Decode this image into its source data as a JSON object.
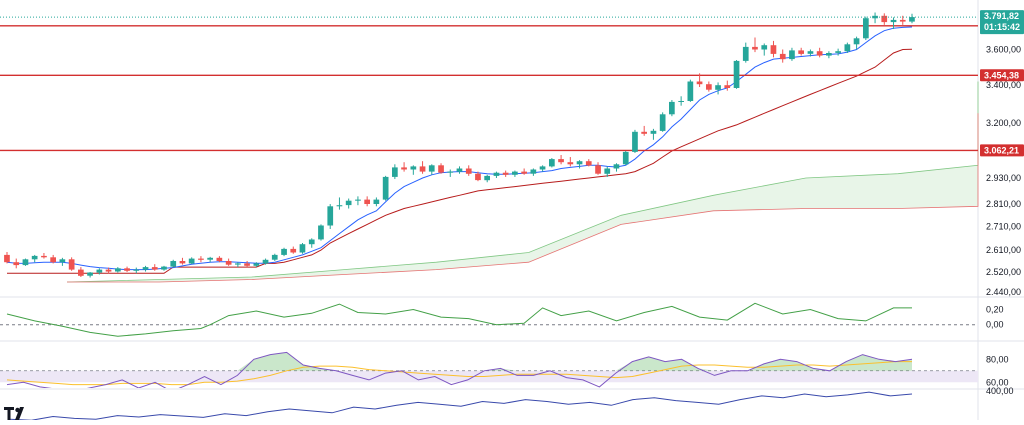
{
  "chart_data": [
    {
      "type": "candlestick",
      "title": "",
      "y_scale": "log",
      "ylim": [
        2425,
        3860
      ],
      "y_ticks": [
        "3.600,00",
        "3.400,00",
        "3.200,00",
        "2.930,00",
        "2.810,00",
        "2.710,00",
        "2.610,00",
        "2.520,00",
        "2.440,00"
      ],
      "y_tick_values": [
        3600,
        3400,
        3200,
        2930,
        2810,
        2710,
        2610,
        2520,
        2440
      ],
      "ohlc": [
        [
          2590,
          2602,
          2555,
          2560
        ],
        [
          2560,
          2575,
          2535,
          2548
        ],
        [
          2548,
          2575,
          2545,
          2572
        ],
        [
          2572,
          2590,
          2560,
          2586
        ],
        [
          2586,
          2598,
          2575,
          2580
        ],
        [
          2580,
          2590,
          2555,
          2560
        ],
        [
          2560,
          2578,
          2545,
          2572
        ],
        [
          2572,
          2580,
          2525,
          2530
        ],
        [
          2530,
          2540,
          2500,
          2505
        ],
        [
          2505,
          2520,
          2498,
          2518
        ],
        [
          2518,
          2535,
          2510,
          2530
        ],
        [
          2530,
          2538,
          2515,
          2522
        ],
        [
          2522,
          2540,
          2518,
          2535
        ],
        [
          2535,
          2542,
          2520,
          2525
        ],
        [
          2525,
          2538,
          2515,
          2530
        ],
        [
          2530,
          2545,
          2522,
          2540
        ],
        [
          2540,
          2552,
          2525,
          2530
        ],
        [
          2530,
          2545,
          2525,
          2542
        ],
        [
          2542,
          2570,
          2538,
          2565
        ],
        [
          2565,
          2578,
          2550,
          2555
        ],
        [
          2555,
          2580,
          2552,
          2575
        ],
        [
          2575,
          2585,
          2560,
          2570
        ],
        [
          2570,
          2582,
          2560,
          2578
        ],
        [
          2578,
          2585,
          2560,
          2565
        ],
        [
          2565,
          2575,
          2545,
          2550
        ],
        [
          2550,
          2560,
          2540,
          2555
        ],
        [
          2555,
          2565,
          2540,
          2545
        ],
        [
          2545,
          2560,
          2540,
          2555
        ],
        [
          2555,
          2575,
          2550,
          2570
        ],
        [
          2570,
          2595,
          2565,
          2590
        ],
        [
          2590,
          2620,
          2585,
          2615
        ],
        [
          2615,
          2625,
          2595,
          2600
        ],
        [
          2600,
          2640,
          2595,
          2635
        ],
        [
          2635,
          2660,
          2620,
          2655
        ],
        [
          2655,
          2720,
          2650,
          2715
        ],
        [
          2715,
          2810,
          2700,
          2800
        ],
        [
          2800,
          2840,
          2785,
          2805
        ],
        [
          2805,
          2835,
          2790,
          2825
        ],
        [
          2825,
          2845,
          2805,
          2830
        ],
        [
          2830,
          2845,
          2800,
          2810
        ],
        [
          2810,
          2840,
          2800,
          2830
        ],
        [
          2830,
          2940,
          2825,
          2935
        ],
        [
          2935,
          2995,
          2925,
          2980
        ],
        [
          2980,
          3005,
          2960,
          2970
        ],
        [
          2970,
          2990,
          2945,
          2985
        ],
        [
          2985,
          3010,
          2950,
          2960
        ],
        [
          2960,
          2995,
          2945,
          2990
        ],
        [
          2990,
          3000,
          2950,
          2955
        ],
        [
          2955,
          2970,
          2935,
          2960
        ],
        [
          2960,
          2985,
          2950,
          2975
        ],
        [
          2975,
          2990,
          2940,
          2950
        ],
        [
          2950,
          2960,
          2915,
          2920
        ],
        [
          2920,
          2945,
          2910,
          2940
        ],
        [
          2940,
          2960,
          2930,
          2955
        ],
        [
          2955,
          2965,
          2935,
          2945
        ],
        [
          2945,
          2965,
          2935,
          2960
        ],
        [
          2960,
          2975,
          2945,
          2950
        ],
        [
          2950,
          2975,
          2940,
          2970
        ],
        [
          2970,
          2990,
          2960,
          2985
        ],
        [
          2985,
          3025,
          2980,
          3020
        ],
        [
          3020,
          3040,
          2995,
          3005
        ],
        [
          3005,
          3030,
          2985,
          2995
        ],
        [
          2995,
          3015,
          2975,
          3010
        ],
        [
          3010,
          3020,
          2985,
          2990
        ],
        [
          2990,
          3005,
          2945,
          2950
        ],
        [
          2950,
          2985,
          2935,
          2975
        ],
        [
          2975,
          3000,
          2960,
          2995
        ],
        [
          2995,
          3060,
          2990,
          3055
        ],
        [
          3055,
          3165,
          3050,
          3155
        ],
        [
          3155,
          3185,
          3135,
          3145
        ],
        [
          3145,
          3170,
          3115,
          3160
        ],
        [
          3160,
          3255,
          3155,
          3245
        ],
        [
          3245,
          3320,
          3235,
          3310
        ],
        [
          3310,
          3340,
          3290,
          3315
        ],
        [
          3315,
          3430,
          3310,
          3420
        ],
        [
          3420,
          3465,
          3390,
          3405
        ],
        [
          3405,
          3420,
          3365,
          3375
        ],
        [
          3375,
          3415,
          3350,
          3400
        ],
        [
          3400,
          3425,
          3370,
          3385
        ],
        [
          3385,
          3540,
          3380,
          3535
        ],
        [
          3535,
          3640,
          3525,
          3615
        ],
        [
          3615,
          3670,
          3585,
          3600
        ],
        [
          3600,
          3635,
          3565,
          3625
        ],
        [
          3625,
          3650,
          3555,
          3575
        ],
        [
          3575,
          3600,
          3525,
          3545
        ],
        [
          3545,
          3610,
          3535,
          3595
        ],
        [
          3595,
          3610,
          3565,
          3575
        ],
        [
          3575,
          3600,
          3560,
          3590
        ],
        [
          3590,
          3610,
          3555,
          3565
        ],
        [
          3565,
          3590,
          3550,
          3580
        ],
        [
          3580,
          3605,
          3565,
          3590
        ],
        [
          3590,
          3640,
          3580,
          3630
        ],
        [
          3630,
          3675,
          3600,
          3665
        ],
        [
          3665,
          3795,
          3655,
          3785
        ],
        [
          3785,
          3820,
          3755,
          3800
        ],
        [
          3800,
          3815,
          3745,
          3762
        ],
        [
          3762,
          3790,
          3720,
          3775
        ],
        [
          3775,
          3800,
          3745,
          3765
        ],
        [
          3765,
          3812,
          3755,
          3792
        ]
      ],
      "tenkan": [
        2560,
        2556,
        2555,
        2558,
        2560,
        2560,
        2560,
        2555,
        2548,
        2542,
        2538,
        2535,
        2532,
        2530,
        2530,
        2530,
        2532,
        2535,
        2538,
        2545,
        2552,
        2556,
        2560,
        2562,
        2562,
        2560,
        2558,
        2556,
        2556,
        2560,
        2570,
        2580,
        2590,
        2605,
        2620,
        2650,
        2680,
        2710,
        2740,
        2762,
        2780,
        2820,
        2860,
        2890,
        2910,
        2930,
        2945,
        2955,
        2958,
        2960,
        2960,
        2955,
        2950,
        2948,
        2948,
        2950,
        2952,
        2955,
        2960,
        2965,
        2975,
        2980,
        2985,
        2990,
        2990,
        2985,
        2982,
        2990,
        3020,
        3060,
        3090,
        3130,
        3180,
        3220,
        3270,
        3320,
        3350,
        3370,
        3385,
        3420,
        3460,
        3500,
        3525,
        3545,
        3550,
        3555,
        3560,
        3565,
        3570,
        3572,
        3575,
        3585,
        3600,
        3640,
        3680,
        3710,
        3725,
        3730,
        3732
      ],
      "kijun": [
        2515,
        2515,
        2515,
        2515,
        2515,
        2515,
        2515,
        2515,
        2515,
        2515,
        2515,
        2515,
        2515,
        2515,
        2515,
        2515,
        2515,
        2515,
        2540,
        2540,
        2540,
        2540,
        2540,
        2540,
        2540,
        2540,
        2540,
        2540,
        2555,
        2555,
        2560,
        2570,
        2580,
        2590,
        2610,
        2640,
        2660,
        2680,
        2700,
        2720,
        2740,
        2760,
        2775,
        2790,
        2800,
        2810,
        2820,
        2830,
        2840,
        2850,
        2860,
        2870,
        2875,
        2880,
        2885,
        2890,
        2895,
        2900,
        2905,
        2910,
        2915,
        2920,
        2925,
        2930,
        2935,
        2940,
        2945,
        2950,
        2960,
        2980,
        3000,
        3030,
        3060,
        3080,
        3100,
        3120,
        3140,
        3160,
        3175,
        3190,
        3210,
        3230,
        3250,
        3270,
        3290,
        3310,
        3330,
        3350,
        3370,
        3390,
        3410,
        3430,
        3450,
        3475,
        3500,
        3540,
        3580,
        3600,
        3602
      ],
      "cloud_x": [
        0,
        10,
        20,
        30,
        40,
        50,
        60,
        70,
        80,
        90,
        100,
        110,
        120,
        123
      ],
      "cloud_a": [
        2480,
        2490,
        2500,
        2530,
        2560,
        2600,
        2760,
        2850,
        2930,
        2950,
        2990,
        3080,
        3300,
        3420
      ],
      "cloud_b": [
        2480,
        2480,
        2490,
        2510,
        2530,
        2560,
        2720,
        2780,
        2790,
        2790,
        2800,
        2900,
        3100,
        3250
      ],
      "horizontal_levels": [
        {
          "value": 3739.53,
          "label": "3.739,53"
        },
        {
          "value": 3454.38,
          "label": "3.454,38"
        },
        {
          "value": 3062.21,
          "label": "3.062,21"
        }
      ],
      "current_price": {
        "value": 3791.82,
        "label": "3.791,82",
        "countdown": "01:15:42"
      },
      "colors": {
        "up": "#26a69a",
        "down": "#ef5350",
        "tenkan": "#2962ff",
        "kijun": "#b71c1c",
        "cloud": "#4caf50",
        "level": "#d32f2f"
      }
    },
    {
      "type": "line",
      "name": "oscillator",
      "ylim": [
        -0.2,
        0.35
      ],
      "y_ticks": [
        "0,20",
        "0,00"
      ],
      "y_tick_values": [
        0.2,
        0.0
      ],
      "x": [
        0,
        3,
        6,
        9,
        12,
        15,
        18,
        21,
        22,
        24,
        27,
        30,
        33,
        36,
        38,
        41,
        44,
        47,
        50,
        53,
        56,
        58,
        60,
        63,
        66,
        69,
        72,
        75,
        78,
        81,
        84,
        87,
        90,
        93,
        96,
        98
      ],
      "values": [
        0.14,
        0.05,
        -0.02,
        -0.1,
        -0.15,
        -0.12,
        -0.08,
        -0.05,
        0.0,
        0.12,
        0.18,
        0.1,
        0.15,
        0.27,
        0.16,
        0.14,
        0.2,
        0.1,
        0.08,
        0.0,
        0.02,
        0.22,
        0.12,
        0.18,
        0.05,
        0.16,
        0.24,
        0.1,
        0.06,
        0.28,
        0.14,
        0.2,
        0.08,
        0.05,
        0.22,
        0.22
      ],
      "zero_line": 0,
      "color": "#43a047"
    },
    {
      "type": "line",
      "name": "rsi",
      "ylim": [
        55,
        95
      ],
      "y_ticks": [
        "80,00",
        "60,00"
      ],
      "y_tick_values": [
        80,
        60
      ],
      "band": [
        60,
        70
      ],
      "series": [
        {
          "values": [
            58,
            60,
            56,
            54,
            52,
            55,
            58,
            62,
            55,
            60,
            52,
            58,
            65,
            58,
            66,
            80,
            84,
            86,
            75,
            72,
            70,
            66,
            62,
            68,
            70,
            62,
            65,
            58,
            62,
            70,
            72,
            66,
            66,
            70,
            64,
            62,
            56,
            68,
            78,
            82,
            78,
            80,
            72,
            66,
            70,
            70,
            76,
            80,
            78,
            72,
            70,
            78,
            84,
            80,
            78,
            80
          ]
        },
        {
          "values": [
            62,
            61,
            60,
            59,
            58,
            58,
            58,
            59,
            59,
            59,
            58,
            58,
            60,
            60,
            61,
            63,
            66,
            70,
            73,
            74,
            74,
            73,
            71,
            70,
            69,
            68,
            67,
            66,
            65,
            65,
            66,
            67,
            67,
            67,
            67,
            66,
            65,
            64,
            65,
            68,
            71,
            74,
            75,
            75,
            74,
            73,
            73,
            74,
            75,
            75,
            74,
            75,
            76,
            77,
            78,
            78
          ]
        }
      ],
      "colors": {
        "rsi": "#7e57c2",
        "signal": "#fbc02d",
        "band": "#ede7f6"
      }
    },
    {
      "type": "line",
      "name": "momentum",
      "y_ticks": [
        "400,00"
      ],
      "y_tick_values": [
        400
      ],
      "values": [
        150,
        140,
        180,
        160,
        150,
        190,
        175,
        200,
        185,
        170,
        210,
        190,
        230,
        260,
        240,
        220,
        280,
        260,
        300,
        330,
        310,
        290,
        340,
        320,
        360,
        340,
        310,
        330,
        300,
        360,
        380,
        350,
        330,
        310,
        360,
        400,
        380,
        420,
        390,
        410,
        440,
        400,
        420
      ],
      "color": "#3949ab"
    }
  ],
  "logo_text": "TV"
}
